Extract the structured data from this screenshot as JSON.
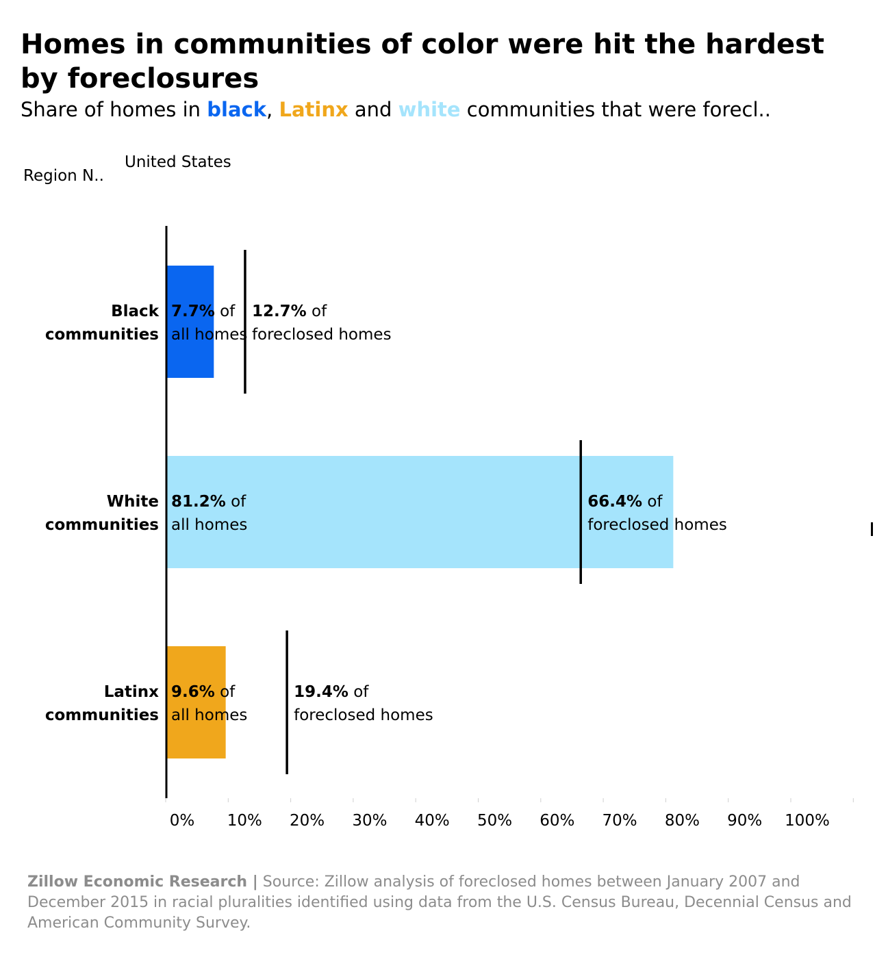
{
  "title": "Homes in communities of color were hit the hardest by foreclosures",
  "subtitle": {
    "prefix": "Share of homes in ",
    "kw1": "black",
    "sep1": ",",
    "kw2": "Latinx",
    "sep2": " and ",
    "kw3": "white",
    "suffix": " communities that were forecl.."
  },
  "filter": {
    "label": "Region N..",
    "value": "United States"
  },
  "footer": {
    "org": "Zillow Economic Research |",
    "source": " Source: Zillow analysis of foreclosed homes between January 2007 and December 2015 in racial pluralities identified using data from the U.S. Census Bureau, Decennial Census and American Community Survey."
  },
  "colors": {
    "black": "#0a66f0",
    "white": "#a5e4fc",
    "latinx": "#f0a71c",
    "marker": "#000000",
    "footer": "#8c8c8c"
  },
  "chart_data": {
    "type": "bar",
    "orientation": "horizontal",
    "categories": [
      [
        "Black",
        "communities"
      ],
      [
        "White",
        "communities"
      ],
      [
        "Latinx",
        "communities"
      ]
    ],
    "series": [
      {
        "name": "all homes",
        "values": [
          7.7,
          81.2,
          9.6
        ]
      },
      {
        "name": "foreclosed homes",
        "values": [
          12.7,
          66.4,
          19.4
        ]
      }
    ],
    "bar_colors": [
      "#0a66f0",
      "#a5e4fc",
      "#f0a71c"
    ],
    "all_homes_labels": [
      [
        "7.7%",
        " of",
        "all homes"
      ],
      [
        "81.2%",
        " of",
        "all homes"
      ],
      [
        "9.6%",
        " of",
        "all homes"
      ]
    ],
    "foreclosed_labels": [
      [
        "12.7%",
        " of",
        "foreclosed homes"
      ],
      [
        "66.4%",
        " of",
        "foreclosed homes"
      ],
      [
        "19.4%",
        " of",
        "foreclosed homes"
      ]
    ],
    "x_ticks": [
      0,
      10,
      20,
      30,
      40,
      50,
      60,
      70,
      80,
      90,
      100
    ],
    "x_tick_labels": [
      "0%",
      "10%",
      "20%",
      "30%",
      "40%",
      "50%",
      "60%",
      "70%",
      "80%",
      "90%",
      "100%"
    ],
    "xlim": [
      0,
      110
    ],
    "grid": false,
    "legend": "none"
  }
}
